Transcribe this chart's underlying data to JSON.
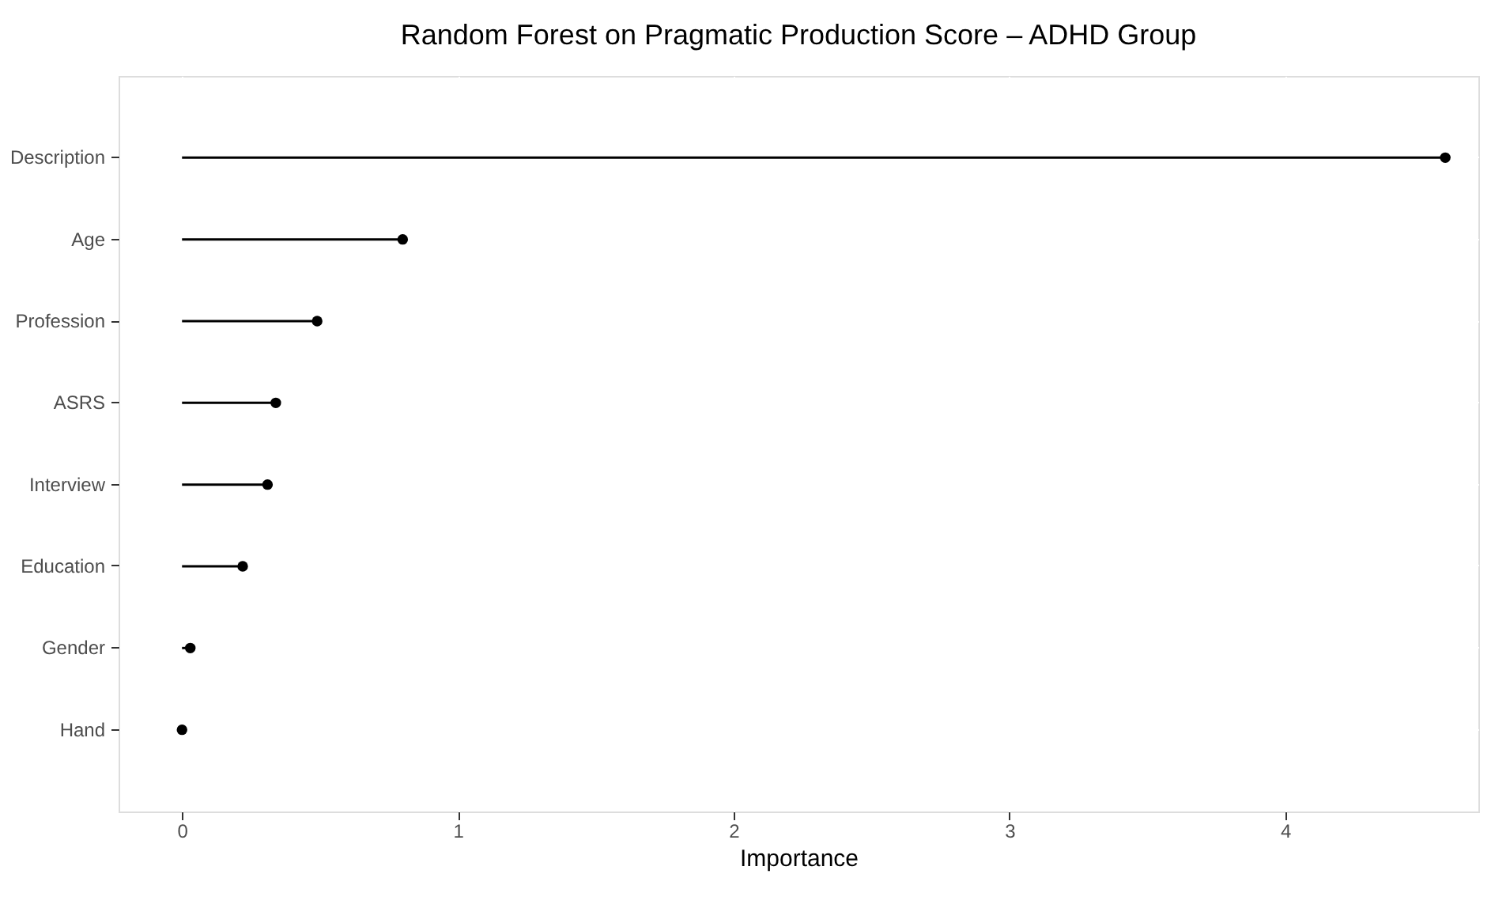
{
  "chart_data": {
    "type": "lollipop",
    "orientation": "horizontal",
    "title": "Random Forest on Pragmatic Production Score – ADHD Group",
    "xlabel": "Importance",
    "categories": [
      "Description",
      "Age",
      "Profession",
      "ASRS",
      "Interview",
      "Education",
      "Gender",
      "Hand"
    ],
    "values": [
      4.58,
      0.8,
      0.49,
      0.34,
      0.31,
      0.22,
      0.03,
      0.0
    ],
    "color": "#000000",
    "marker": "circle",
    "grid": true,
    "xlim": [
      -0.23,
      4.7
    ],
    "xticks": [
      0,
      1,
      2,
      3,
      4
    ]
  }
}
